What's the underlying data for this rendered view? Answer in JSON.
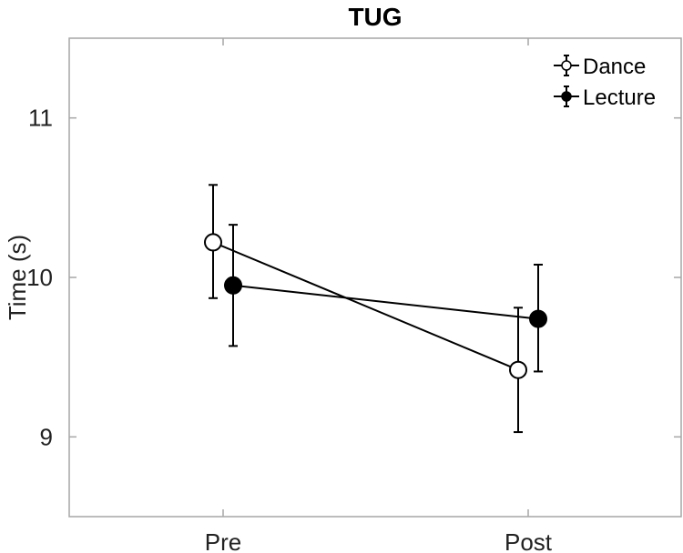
{
  "chart_data": {
    "type": "line",
    "title": "TUG",
    "xlabel": "",
    "ylabel": "Time (s)",
    "categories": [
      "Pre",
      "Post"
    ],
    "ylim": [
      8.5,
      11.5
    ],
    "yticks": [
      9,
      10,
      11
    ],
    "ytick_labels": [
      "9",
      "10",
      "11"
    ],
    "grid": false,
    "legend_position": "top-right",
    "series": [
      {
        "name": "Dance",
        "marker": "open-circle",
        "color": "#000000",
        "values": [
          10.22,
          9.42
        ],
        "err_low": [
          9.87,
          9.03
        ],
        "err_high": [
          10.58,
          9.81
        ]
      },
      {
        "name": "Lecture",
        "marker": "filled-circle",
        "color": "#000000",
        "values": [
          9.95,
          9.74
        ],
        "err_low": [
          9.57,
          9.41
        ],
        "err_high": [
          10.33,
          10.08
        ]
      }
    ]
  }
}
